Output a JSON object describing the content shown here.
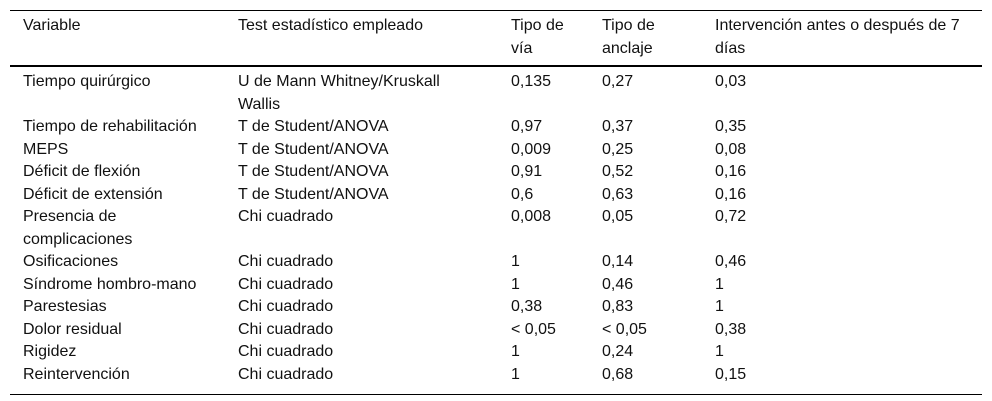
{
  "colors": {
    "background": "#ffffff",
    "text": "#111111",
    "rule": "#000000"
  },
  "table": {
    "columns": [
      "Variable",
      "Test estadístico empleado",
      "Tipo de vía",
      "Tipo de anclaje",
      "Intervención antes o después de 7 días"
    ],
    "rows": [
      [
        "Tiempo quirúrgico",
        "U de Mann Whitney/Kruskall Wallis",
        "0,135",
        "0,27",
        "0,03"
      ],
      [
        "Tiempo de rehabilitación",
        "T de Student/ANOVA",
        "0,97",
        "0,37",
        "0,35"
      ],
      [
        "MEPS",
        "T de Student/ANOVA",
        "0,009",
        "0,25",
        "0,08"
      ],
      [
        "Déficit de flexión",
        "T de Student/ANOVA",
        "0,91",
        "0,52",
        "0,16"
      ],
      [
        "Déficit de extensión",
        "T de Student/ANOVA",
        "0,6",
        "0,63",
        "0,16"
      ],
      [
        "Presencia de complicaciones",
        "Chi cuadrado",
        "0,008",
        "0,05",
        "0,72"
      ],
      [
        "Osificaciones",
        "Chi cuadrado",
        "1",
        "0,14",
        "0,46"
      ],
      [
        "Síndrome hombro-mano",
        "Chi cuadrado",
        "1",
        "0,46",
        "1"
      ],
      [
        "Parestesias",
        "Chi cuadrado",
        "0,38",
        "0,83",
        "1"
      ],
      [
        "Dolor residual",
        "Chi cuadrado",
        "< 0,05",
        "< 0,05",
        "0,38"
      ],
      [
        "Rigidez",
        "Chi cuadrado",
        "1",
        "0,24",
        "1"
      ],
      [
        "Reintervención",
        "Chi cuadrado",
        "1",
        "0,68",
        "0,15"
      ]
    ]
  }
}
